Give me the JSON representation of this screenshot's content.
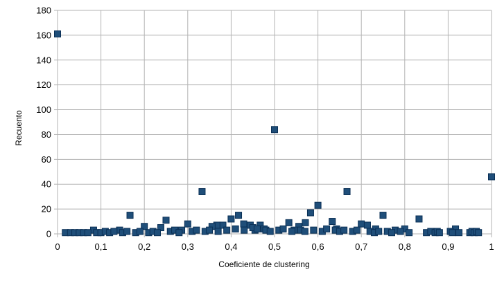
{
  "chart_data": {
    "type": "scatter",
    "xlabel": "Coeficiente de clustering",
    "ylabel": "Recuento",
    "xlim": [
      0,
      1
    ],
    "ylim": [
      0,
      180
    ],
    "xticks": [
      0,
      0.1,
      0.2,
      0.3,
      0.4,
      0.5,
      0.6,
      0.7,
      0.8,
      0.9,
      1
    ],
    "xtick_labels": [
      "0",
      "0,1",
      "0,2",
      "0,3",
      "0,4",
      "0,5",
      "0,6",
      "0,7",
      "0,8",
      "0,9",
      "1"
    ],
    "yticks": [
      0,
      20,
      40,
      60,
      80,
      100,
      120,
      140,
      160,
      180
    ],
    "ytick_labels": [
      "0",
      "20",
      "40",
      "60",
      "80",
      "100",
      "120",
      "140",
      "160",
      "180"
    ],
    "grid": true,
    "marker_color": "#1f4e79",
    "marker_edge_color": "#0a2f55",
    "series": [
      {
        "points": [
          [
            0,
            161
          ],
          [
            0.5,
            84
          ],
          [
            1,
            46
          ],
          [
            0.333,
            34
          ],
          [
            0.667,
            34
          ],
          [
            0.6,
            23
          ],
          [
            0.167,
            15
          ],
          [
            0.417,
            15
          ],
          [
            0.75,
            15
          ],
          [
            0.583,
            17
          ],
          [
            0.25,
            11
          ],
          [
            0.4,
            12
          ],
          [
            0.833,
            12
          ],
          [
            0.633,
            10
          ],
          [
            0.533,
            9
          ],
          [
            0.3,
            8
          ],
          [
            0.571,
            9
          ],
          [
            0.7,
            8
          ],
          [
            0.714,
            7
          ],
          [
            0.429,
            8
          ],
          [
            0.381,
            7
          ],
          [
            0.367,
            7
          ],
          [
            0.444,
            7
          ],
          [
            0.467,
            7
          ],
          [
            0.2,
            6
          ],
          [
            0.356,
            6
          ],
          [
            0.556,
            6
          ],
          [
            0.238,
            5
          ],
          [
            0.8,
            4
          ],
          [
            0.917,
            4
          ],
          [
            0.733,
            4
          ],
          [
            0.083,
            3
          ],
          [
            0.143,
            3
          ],
          [
            0.286,
            3
          ],
          [
            0.476,
            4
          ],
          [
            0.643,
            4
          ],
          [
            0.455,
            3
          ],
          [
            0.545,
            3
          ],
          [
            0.778,
            3
          ],
          [
            0.018,
            1
          ],
          [
            0.03,
            1
          ],
          [
            0.04,
            1
          ],
          [
            0.05,
            1
          ],
          [
            0.06,
            1
          ],
          [
            0.07,
            1
          ],
          [
            0.09,
            1
          ],
          [
            0.1,
            1
          ],
          [
            0.11,
            2
          ],
          [
            0.12,
            1
          ],
          [
            0.13,
            2
          ],
          [
            0.15,
            1
          ],
          [
            0.16,
            2
          ],
          [
            0.18,
            1
          ],
          [
            0.19,
            2
          ],
          [
            0.21,
            1
          ],
          [
            0.22,
            2
          ],
          [
            0.23,
            1
          ],
          [
            0.26,
            2
          ],
          [
            0.27,
            3
          ],
          [
            0.28,
            1
          ],
          [
            0.31,
            2
          ],
          [
            0.32,
            3
          ],
          [
            0.34,
            2
          ],
          [
            0.35,
            3
          ],
          [
            0.37,
            2
          ],
          [
            0.39,
            3
          ],
          [
            0.41,
            4
          ],
          [
            0.43,
            3
          ],
          [
            0.45,
            5
          ],
          [
            0.46,
            4
          ],
          [
            0.48,
            3
          ],
          [
            0.49,
            2
          ],
          [
            0.51,
            3
          ],
          [
            0.52,
            4
          ],
          [
            0.54,
            2
          ],
          [
            0.56,
            3
          ],
          [
            0.57,
            2
          ],
          [
            0.59,
            3
          ],
          [
            0.61,
            2
          ],
          [
            0.62,
            4
          ],
          [
            0.64,
            3
          ],
          [
            0.65,
            2
          ],
          [
            0.66,
            3
          ],
          [
            0.68,
            2
          ],
          [
            0.69,
            3
          ],
          [
            0.72,
            2
          ],
          [
            0.73,
            1
          ],
          [
            0.74,
            2
          ],
          [
            0.76,
            2
          ],
          [
            0.77,
            1
          ],
          [
            0.79,
            2
          ],
          [
            0.81,
            1
          ],
          [
            0.85,
            1
          ],
          [
            0.86,
            2
          ],
          [
            0.87,
            1
          ],
          [
            0.875,
            2
          ],
          [
            0.88,
            1
          ],
          [
            0.905,
            2
          ],
          [
            0.91,
            1
          ],
          [
            0.925,
            1
          ],
          [
            0.95,
            1
          ],
          [
            0.955,
            2
          ],
          [
            0.96,
            1
          ],
          [
            0.965,
            2
          ],
          [
            0.97,
            1
          ]
        ]
      }
    ]
  }
}
